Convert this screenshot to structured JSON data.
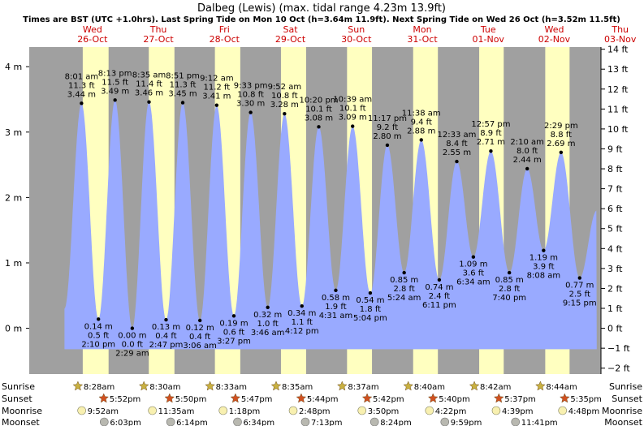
{
  "chart_data": {
    "type": "area",
    "title": "Dalbeg (Lewis) (max. tidal range 4.23m 13.9ft)",
    "subtitle": "Times are BST (UTC +1.0hrs). Last Spring Tide on Mon 10 Oct (h=3.64m 11.9ft). Next Spring Tide on Wed 26 Oct (h=3.52m 11.5ft)",
    "x_unit": "hours from 26-Oct 00:00 BST",
    "xlim": [
      -11,
      197
    ],
    "ylim": [
      -0.7,
      4.3
    ],
    "y_ticks_m": [
      {
        "value": 0,
        "label": "0 m"
      },
      {
        "value": 1,
        "label": "1 m"
      },
      {
        "value": 2,
        "label": "2 m"
      },
      {
        "value": 3,
        "label": "3 m"
      },
      {
        "value": 4,
        "label": "4 m"
      }
    ],
    "y_ticks_ft": [
      {
        "value": -2,
        "label": "−2 ft"
      },
      {
        "value": -1,
        "label": "−1 ft"
      },
      {
        "value": 0,
        "label": "0 ft"
      },
      {
        "value": 1,
        "label": "1 ft"
      },
      {
        "value": 2,
        "label": "2 ft"
      },
      {
        "value": 3,
        "label": "3 ft"
      },
      {
        "value": 4,
        "label": "4 ft"
      },
      {
        "value": 5,
        "label": "5 ft"
      },
      {
        "value": 6,
        "label": "6 ft"
      },
      {
        "value": 7,
        "label": "7 ft"
      },
      {
        "value": 8,
        "label": "8 ft"
      },
      {
        "value": 9,
        "label": "9 ft"
      },
      {
        "value": 10,
        "label": "10 ft"
      },
      {
        "value": 11,
        "label": "11 ft"
      },
      {
        "value": 12,
        "label": "12 ft"
      },
      {
        "value": 13,
        "label": "13 ft"
      },
      {
        "value": 14,
        "label": "14 ft"
      }
    ],
    "days": [
      {
        "day": "Wed",
        "date": "26-Oct",
        "sunrise": 8.47,
        "sunset": 17.87
      },
      {
        "day": "Thu",
        "date": "27-Oct",
        "sunrise": 32.5,
        "sunset": 41.83
      },
      {
        "day": "Fri",
        "date": "28-Oct",
        "sunrise": 56.55,
        "sunset": 65.78
      },
      {
        "day": "Sat",
        "date": "29-Oct",
        "sunrise": 80.58,
        "sunset": 89.73
      },
      {
        "day": "Sun",
        "date": "30-Oct",
        "sunrise": 104.62,
        "sunset": 113.7
      },
      {
        "day": "Mon",
        "date": "31-Oct",
        "sunrise": 128.67,
        "sunset": 137.67
      },
      {
        "day": "Tue",
        "date": "01-Nov",
        "sunrise": 152.7,
        "sunset": 161.62
      },
      {
        "day": "Wed",
        "date": "02-Nov",
        "sunrise": 176.73,
        "sunset": 185.58
      },
      {
        "day": "Thu",
        "date": "03-Nov",
        "sunrise": 200.77,
        "sunset": 209.53
      }
    ],
    "tides": [
      {
        "t": 8.02,
        "h": 3.44,
        "type": "high",
        "time": "8:01 am",
        "ft": "11.3 ft",
        "m": "3.44 m"
      },
      {
        "t": 14.17,
        "h": 0.14,
        "type": "low",
        "time": "2:10 pm",
        "ft": "0.5 ft",
        "m": "0.14 m"
      },
      {
        "t": 20.22,
        "h": 3.49,
        "type": "high",
        "time": "8:13 pm",
        "ft": "11.5 ft",
        "m": "3.49 m"
      },
      {
        "t": 26.48,
        "h": 0.0,
        "type": "low",
        "time": "2:29 am",
        "ft": "0.0 ft",
        "m": "0.00 m"
      },
      {
        "t": 32.58,
        "h": 3.46,
        "type": "high",
        "time": "8:35 am",
        "ft": "11.4 ft",
        "m": "3.46 m"
      },
      {
        "t": 38.78,
        "h": 0.13,
        "type": "low",
        "time": "2:47 pm",
        "ft": "0.4 ft",
        "m": "0.13 m"
      },
      {
        "t": 44.85,
        "h": 3.45,
        "type": "high",
        "time": "8:51 pm",
        "ft": "11.3 ft",
        "m": "3.45 m"
      },
      {
        "t": 51.1,
        "h": 0.12,
        "type": "low",
        "time": "3:06 am",
        "ft": "0.4 ft",
        "m": "0.12 m"
      },
      {
        "t": 57.2,
        "h": 3.41,
        "type": "high",
        "time": "9:12 am",
        "ft": "11.2 ft",
        "m": "3.41 m"
      },
      {
        "t": 63.45,
        "h": 0.19,
        "type": "low",
        "time": "3:27 pm",
        "ft": "0.6 ft",
        "m": "0.19 m"
      },
      {
        "t": 69.55,
        "h": 3.3,
        "type": "high",
        "time": "9:33 pm",
        "ft": "10.8 ft",
        "m": "3.30 m"
      },
      {
        "t": 75.77,
        "h": 0.32,
        "type": "low",
        "time": "3:46 am",
        "ft": "1.0 ft",
        "m": "0.32 m"
      },
      {
        "t": 81.87,
        "h": 3.28,
        "type": "high",
        "time": "9:52 am",
        "ft": "10.8 ft",
        "m": "3.28 m"
      },
      {
        "t": 88.2,
        "h": 0.34,
        "type": "low",
        "time": "4:12 pm",
        "ft": "1.1 ft",
        "m": "0.34 m"
      },
      {
        "t": 94.33,
        "h": 3.08,
        "type": "high",
        "time": "10:20 pm",
        "ft": "10.1 ft",
        "m": "3.08 m"
      },
      {
        "t": 100.52,
        "h": 0.58,
        "type": "low",
        "time": "4:31 am",
        "ft": "1.9 ft",
        "m": "0.58 m"
      },
      {
        "t": 106.65,
        "h": 3.09,
        "type": "high",
        "time": "10:39 am",
        "ft": "10.1 ft",
        "m": "3.09 m"
      },
      {
        "t": 113.07,
        "h": 0.54,
        "type": "low",
        "time": "5:04 pm",
        "ft": "1.8 ft",
        "m": "0.54 m"
      },
      {
        "t": 119.28,
        "h": 2.8,
        "type": "high",
        "time": "11:17 pm",
        "ft": "9.2 ft",
        "m": "2.80 m"
      },
      {
        "t": 125.4,
        "h": 0.85,
        "type": "low",
        "time": "5:24 am",
        "ft": "2.8 ft",
        "m": "0.85 m"
      },
      {
        "t": 131.63,
        "h": 2.88,
        "type": "high",
        "time": "11:38 am",
        "ft": "9.4 ft",
        "m": "2.88 m"
      },
      {
        "t": 138.18,
        "h": 0.74,
        "type": "low",
        "time": "6:11 pm",
        "ft": "2.4 ft",
        "m": "0.74 m"
      },
      {
        "t": 144.55,
        "h": 2.55,
        "type": "high",
        "time": "12:33 am",
        "ft": "8.4 ft",
        "m": "2.55 m"
      },
      {
        "t": 150.57,
        "h": 1.09,
        "type": "low",
        "time": "6:34 am",
        "ft": "3.6 ft",
        "m": "1.09 m"
      },
      {
        "t": 156.95,
        "h": 2.71,
        "type": "high",
        "time": "12:57 pm",
        "ft": "8.9 ft",
        "m": "2.71 m"
      },
      {
        "t": 163.67,
        "h": 0.85,
        "type": "low",
        "time": "7:40 pm",
        "ft": "2.8 ft",
        "m": "0.85 m"
      },
      {
        "t": 170.17,
        "h": 2.44,
        "type": "high",
        "time": "2:10 am",
        "ft": "8.0 ft",
        "m": "2.44 m"
      },
      {
        "t": 176.13,
        "h": 1.19,
        "type": "low",
        "time": "8:08 am",
        "ft": "3.9 ft",
        "m": "1.19 m"
      },
      {
        "t": 182.48,
        "h": 2.69,
        "type": "high",
        "time": "2:29 pm",
        "ft": "8.8 ft",
        "m": "2.69 m"
      },
      {
        "t": 189.25,
        "h": 0.77,
        "type": "low",
        "time": "9:15 pm",
        "ft": "2.5 ft",
        "m": "0.77 m"
      }
    ],
    "row_labels": {
      "sunrise": "Sunrise",
      "sunset": "Sunset",
      "moonrise": "Moonrise",
      "moonset": "Moonset"
    },
    "sunrise": [
      {
        "t": 8.47,
        "label": "8:28am"
      },
      {
        "t": 32.5,
        "label": "8:30am"
      },
      {
        "t": 56.55,
        "label": "8:33am"
      },
      {
        "t": 80.58,
        "label": "8:35am"
      },
      {
        "t": 104.62,
        "label": "8:37am"
      },
      {
        "t": 128.67,
        "label": "8:40am"
      },
      {
        "t": 152.7,
        "label": "8:42am"
      },
      {
        "t": 176.73,
        "label": "8:44am"
      }
    ],
    "sunset": [
      {
        "t": 17.87,
        "label": "5:52pm"
      },
      {
        "t": 41.83,
        "label": "5:50pm"
      },
      {
        "t": 65.78,
        "label": "5:47pm"
      },
      {
        "t": 89.73,
        "label": "5:44pm"
      },
      {
        "t": 113.7,
        "label": "5:42pm"
      },
      {
        "t": 137.67,
        "label": "5:40pm"
      },
      {
        "t": 161.62,
        "label": "5:37pm"
      },
      {
        "t": 185.58,
        "label": "5:35pm"
      }
    ],
    "moonrise": [
      {
        "t": 9.87,
        "label": "9:52am"
      },
      {
        "t": 35.58,
        "label": "11:35am"
      },
      {
        "t": 61.3,
        "label": "1:18pm"
      },
      {
        "t": 86.8,
        "label": "2:48pm"
      },
      {
        "t": 111.83,
        "label": "3:50pm"
      },
      {
        "t": 136.37,
        "label": "4:22pm"
      },
      {
        "t": 160.65,
        "label": "4:39pm"
      },
      {
        "t": 184.8,
        "label": "4:48pm"
      }
    ],
    "moonset": [
      {
        "t": 18.05,
        "label": "6:03pm"
      },
      {
        "t": 42.23,
        "label": "6:14pm"
      },
      {
        "t": 66.57,
        "label": "6:34pm"
      },
      {
        "t": 91.22,
        "label": "7:13pm"
      },
      {
        "t": 116.4,
        "label": "8:24pm"
      },
      {
        "t": 141.98,
        "label": "9:59pm"
      },
      {
        "t": 167.68,
        "label": "11:41pm"
      }
    ],
    "colors": {
      "night": "#a0a0a0",
      "day": "#ffffc0",
      "tide": "#99aaff",
      "sun": "#c8b040",
      "sunset_star": "#d05020",
      "moon_light": "#f8f0b0",
      "moon_dark": "#b8b8b0"
    }
  }
}
